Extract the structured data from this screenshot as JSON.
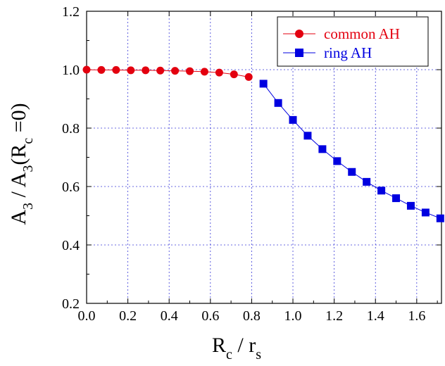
{
  "chart_data": {
    "type": "line",
    "xlabel": {
      "main": "R",
      "sub1": "c",
      "mid": " / r",
      "sub2": "s"
    },
    "ylabel": {
      "p1": "A",
      "s1": "3",
      "p2": " / A",
      "s2": "3",
      "p3": "(R",
      "s3": "c",
      "p4": " =0)"
    },
    "xlim": [
      0,
      1.72
    ],
    "ylim": [
      0.2,
      1.2
    ],
    "x_ticks": [
      0.0,
      0.2,
      0.4,
      0.6,
      0.8,
      1.0,
      1.2,
      1.4,
      1.6
    ],
    "x_tick_labels": [
      "0.0",
      "0.2",
      "0.4",
      "0.6",
      "0.8",
      "1.0",
      "1.2",
      "1.4",
      "1.6"
    ],
    "y_ticks": [
      0.2,
      0.4,
      0.6,
      0.8,
      1.0,
      1.2
    ],
    "y_tick_labels": [
      "0.2",
      "0.4",
      "0.6",
      "0.8",
      "1.0",
      "1.2"
    ],
    "grid": true,
    "legend_position": "top-right",
    "series": [
      {
        "name": "common AH",
        "color": "#e3000f",
        "marker": "circle",
        "x": [
          0.0,
          0.0714,
          0.1429,
          0.2143,
          0.2857,
          0.3571,
          0.4286,
          0.5,
          0.5714,
          0.6429,
          0.7143,
          0.7857
        ],
        "y": [
          1.0,
          0.999,
          0.999,
          0.998,
          0.998,
          0.997,
          0.996,
          0.995,
          0.993,
          0.99,
          0.984,
          0.975
        ]
      },
      {
        "name": "ring AH",
        "color": "#0000e0",
        "marker": "square",
        "x": [
          0.8571,
          0.9286,
          1.0,
          1.0714,
          1.1429,
          1.2143,
          1.2857,
          1.3571,
          1.4286,
          1.5,
          1.5714,
          1.6429,
          1.7143
        ],
        "y": [
          0.952,
          0.886,
          0.828,
          0.774,
          0.728,
          0.687,
          0.65,
          0.616,
          0.586,
          0.56,
          0.534,
          0.511,
          0.491
        ]
      }
    ]
  }
}
